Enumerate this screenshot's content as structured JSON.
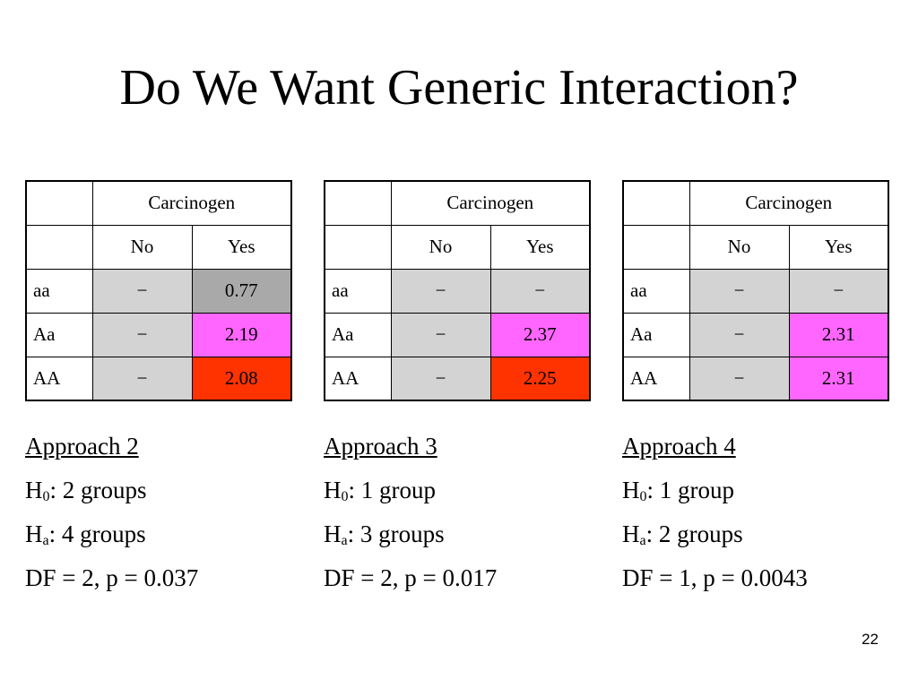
{
  "slide": {
    "title": "Do We Want Generic Interaction?",
    "page_number": "22"
  },
  "colors": {
    "gray": "#d3d3d3",
    "dark_gray": "#a9a9a9",
    "pink": "#ff66ff",
    "red": "#ff3300"
  },
  "panels": [
    {
      "header": "Carcinogen",
      "col_no": "No",
      "col_yes": "Yes",
      "rows": [
        {
          "label": "aa",
          "no": "−",
          "yes": "0.77",
          "no_color": "gray",
          "yes_color": "dark_gray"
        },
        {
          "label": "Aa",
          "no": "−",
          "yes": "2.19",
          "no_color": "gray",
          "yes_color": "pink"
        },
        {
          "label": "AA",
          "no": "−",
          "yes": "2.08",
          "no_color": "gray",
          "yes_color": "red"
        }
      ],
      "approach": "Approach 2",
      "h0_prefix": "H",
      "h0_sub": "0",
      "h0_text": ":  2 groups",
      "ha_prefix": "H",
      "ha_sub": "a",
      "ha_text": ":  4 groups",
      "df": "DF = 2, p = 0.037"
    },
    {
      "header": "Carcinogen",
      "col_no": "No",
      "col_yes": "Yes",
      "rows": [
        {
          "label": "aa",
          "no": "−",
          "yes": "−",
          "no_color": "gray",
          "yes_color": "gray"
        },
        {
          "label": "Aa",
          "no": "−",
          "yes": "2.37",
          "no_color": "gray",
          "yes_color": "pink"
        },
        {
          "label": "AA",
          "no": "−",
          "yes": "2.25",
          "no_color": "gray",
          "yes_color": "red"
        }
      ],
      "approach": "Approach 3",
      "h0_prefix": "H",
      "h0_sub": "0",
      "h0_text": ":  1 group",
      "ha_prefix": "H",
      "ha_sub": "a",
      "ha_text": ":  3 groups",
      "df": "DF = 2, p = 0.017"
    },
    {
      "header": "Carcinogen",
      "col_no": "No",
      "col_yes": "Yes",
      "rows": [
        {
          "label": "aa",
          "no": "−",
          "yes": "−",
          "no_color": "gray",
          "yes_color": "gray"
        },
        {
          "label": "Aa",
          "no": "−",
          "yes": "2.31",
          "no_color": "gray",
          "yes_color": "pink"
        },
        {
          "label": "AA",
          "no": "−",
          "yes": "2.31",
          "no_color": "gray",
          "yes_color": "pink"
        }
      ],
      "approach": "Approach 4",
      "h0_prefix": "H",
      "h0_sub": "0",
      "h0_text": ":  1 group",
      "ha_prefix": "H",
      "ha_sub": "a",
      "ha_text": ":  2 groups",
      "df": "DF = 1, p = 0.0043"
    }
  ]
}
